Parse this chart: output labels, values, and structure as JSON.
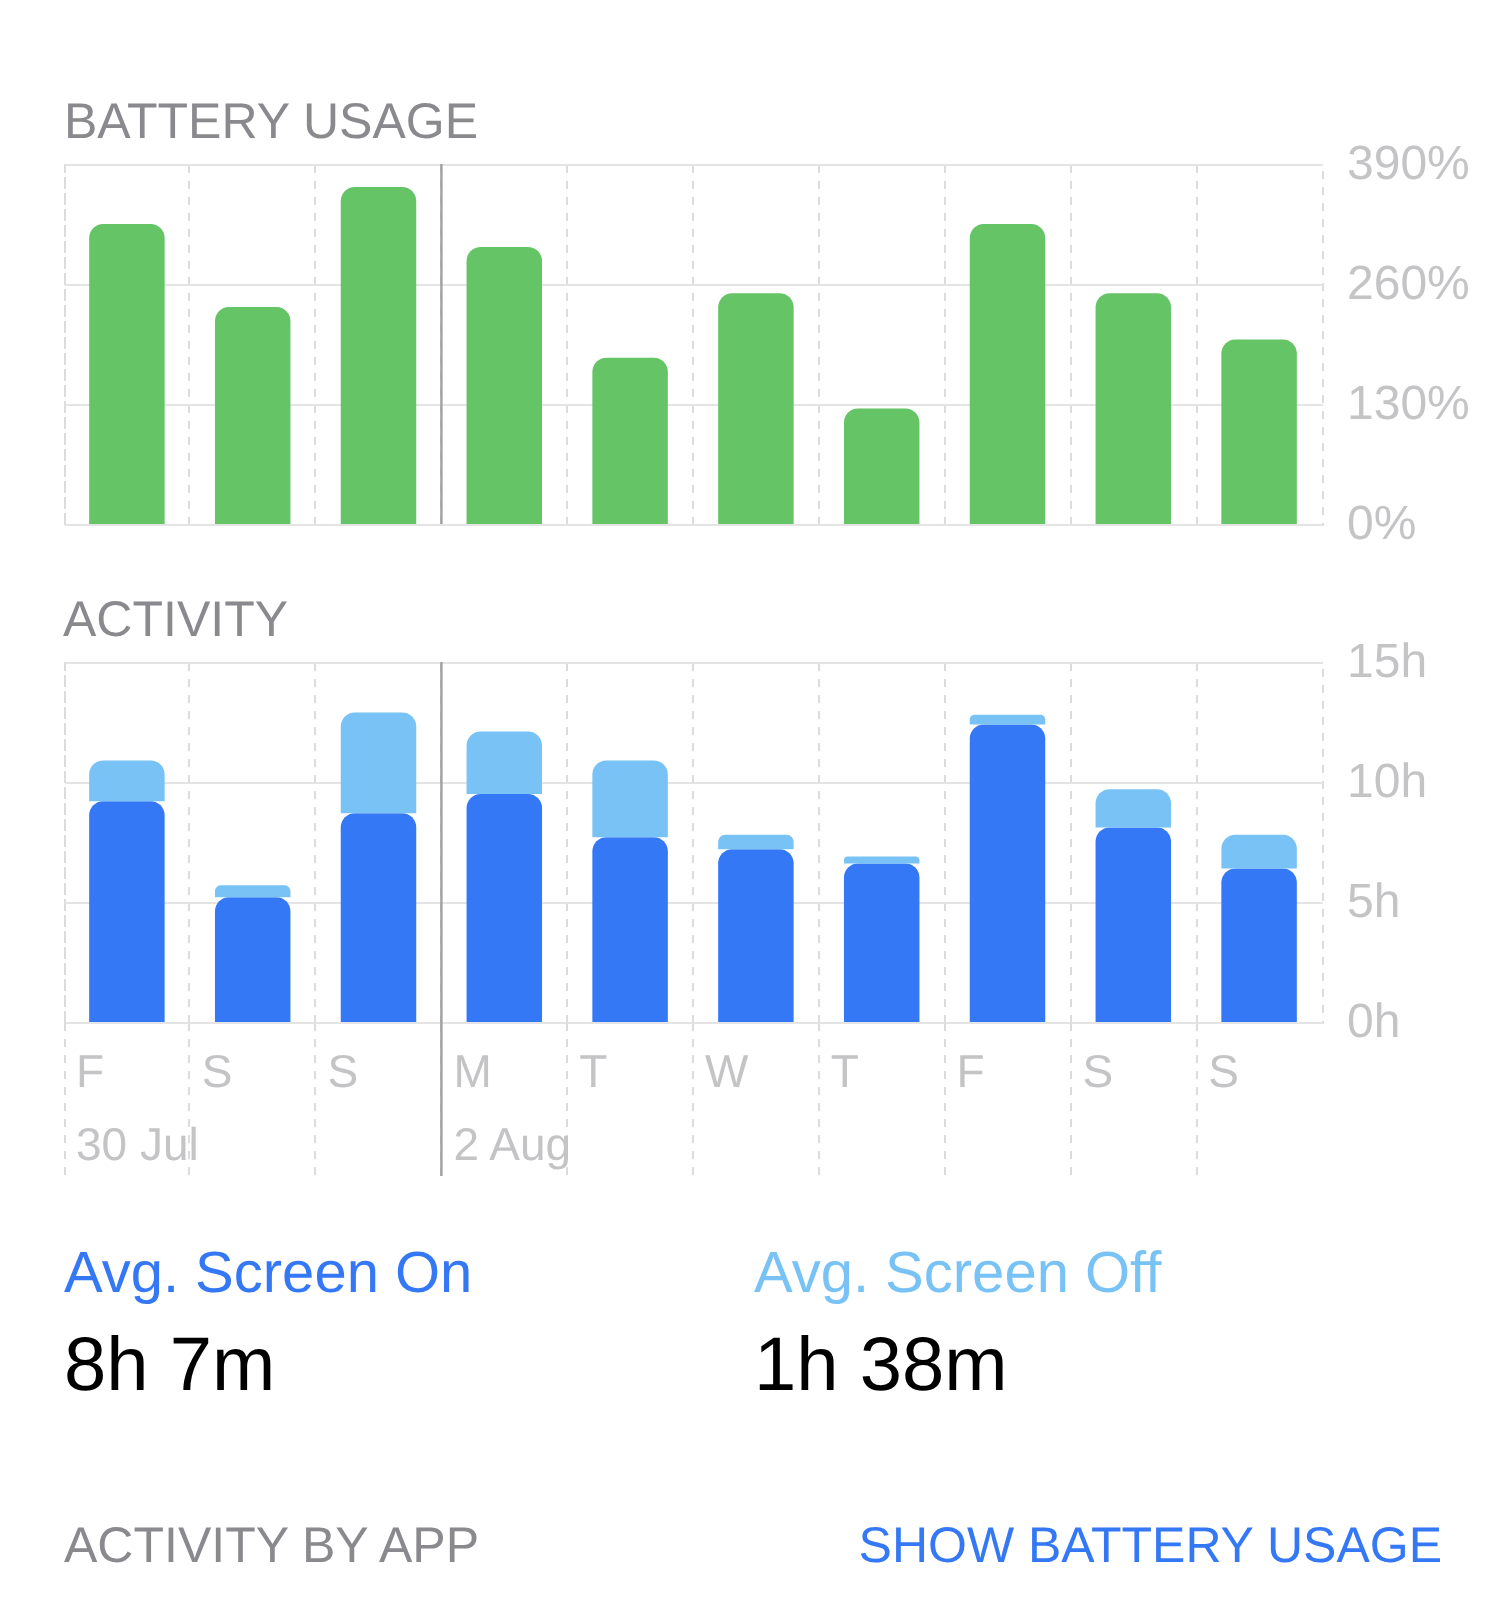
{
  "chart_data": [
    {
      "type": "bar",
      "title": "BATTERY USAGE",
      "categories": [
        "F",
        "S",
        "S",
        "M",
        "T",
        "W",
        "T",
        "F",
        "S",
        "S"
      ],
      "values": [
        325,
        235,
        365,
        300,
        180,
        250,
        125,
        325,
        250,
        200
      ],
      "color": "#65c466",
      "ylim": [
        0,
        390
      ],
      "yticks": [
        {
          "value": 0,
          "label": "0%"
        },
        {
          "value": 130,
          "label": "130%"
        },
        {
          "value": 260,
          "label": "260%"
        },
        {
          "value": 390,
          "label": "390%"
        }
      ],
      "grid": true,
      "tick_labels": "y",
      "ref_lines": [
        {
          "axis": "x",
          "value": "M",
          "color": "#a0a0a0"
        }
      ]
    },
    {
      "type": "bar",
      "title": "ACTIVITY",
      "stacked": true,
      "categories": [
        "F",
        "S",
        "S",
        "M",
        "T",
        "W",
        "T",
        "F",
        "S",
        "S"
      ],
      "series": [
        {
          "name": "Avg. Screen On",
          "color": "#3478f6",
          "values": [
            9.2,
            5.2,
            8.7,
            9.5,
            7.7,
            7.2,
            6.6,
            12.4,
            8.1,
            6.4
          ]
        },
        {
          "name": "Avg. Screen Off",
          "color": "#79c2f5",
          "values": [
            1.7,
            0.5,
            4.2,
            2.6,
            3.2,
            0.6,
            0.3,
            0.4,
            1.6,
            1.4
          ]
        }
      ],
      "ylim": [
        0,
        15
      ],
      "yticks": [
        {
          "value": 0,
          "label": "0h"
        },
        {
          "value": 5,
          "label": "5h"
        },
        {
          "value": 10,
          "label": "10h"
        },
        {
          "value": 15,
          "label": "15h"
        }
      ],
      "grid": true,
      "legend": "bottom",
      "ref_lines": [
        {
          "axis": "x",
          "value": "M",
          "label": "2 Aug",
          "color": "#a0a0a0"
        }
      ],
      "annotations": [
        "30 Jul",
        "8h 7m",
        "1h 38m",
        "ACTIVITY BY APP",
        "SHOW BATTERY USAGE"
      ]
    }
  ]
}
